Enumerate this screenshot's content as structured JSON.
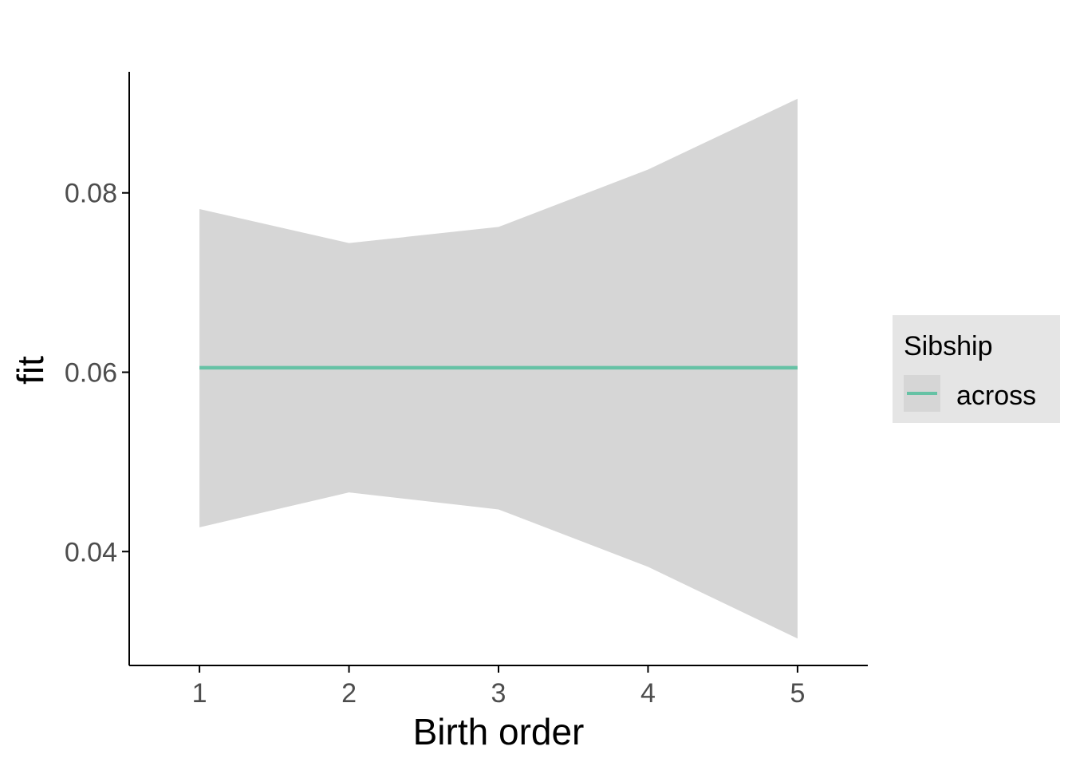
{
  "chart_data": {
    "type": "line",
    "xlabel": "Birth order",
    "ylabel": "fit",
    "x": [
      1,
      2,
      3,
      4,
      5
    ],
    "x_ticks": [
      "1",
      "2",
      "3",
      "4",
      "5"
    ],
    "y_ticks": [
      "0.04",
      "0.06",
      "0.08"
    ],
    "y_tick_values": [
      0.04,
      0.06,
      0.08
    ],
    "xlim": [
      0.53,
      5.47
    ],
    "ylim": [
      0.0273,
      0.0935
    ],
    "grid": false,
    "series": [
      {
        "name": "across",
        "fit": [
          0.0605,
          0.0605,
          0.0605,
          0.0605,
          0.0605
        ],
        "lower": [
          0.0427,
          0.0466,
          0.0447,
          0.0383,
          0.0303
        ],
        "upper": [
          0.0782,
          0.0744,
          0.0762,
          0.0826,
          0.0905
        ]
      }
    ],
    "legend": {
      "title": "Sibship",
      "placement": "right",
      "entries": [
        "across"
      ]
    },
    "colors": {
      "line": "#66c2a5",
      "ribbon": "#d6d6d6",
      "legend_bg": "#e5e5e5",
      "legend_key_bg": "#d6d6d6",
      "axis": "#000000",
      "tick_text": "#4d4d4d"
    }
  }
}
